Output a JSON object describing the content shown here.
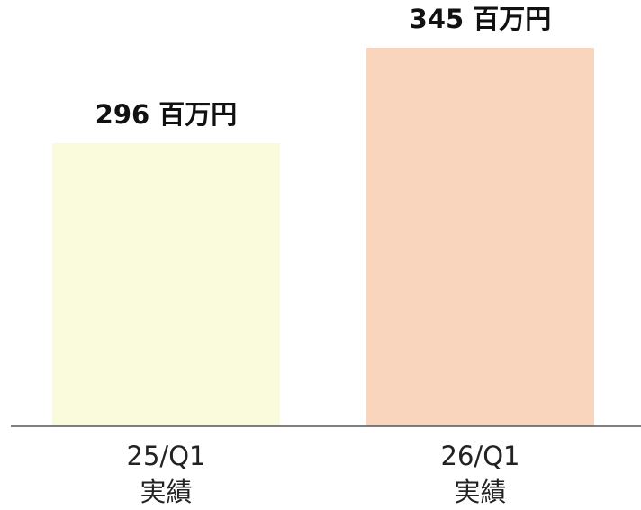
{
  "chart_data": {
    "type": "bar",
    "categories": [
      "25/Q1\n実績",
      "26/Q1\n実績"
    ],
    "values": [
      296,
      345
    ],
    "value_labels": [
      "296 百万円",
      "345 百万円"
    ],
    "colors": [
      "#fafadc",
      "#f9d5bd"
    ],
    "ylim": [
      151,
      351
    ]
  }
}
